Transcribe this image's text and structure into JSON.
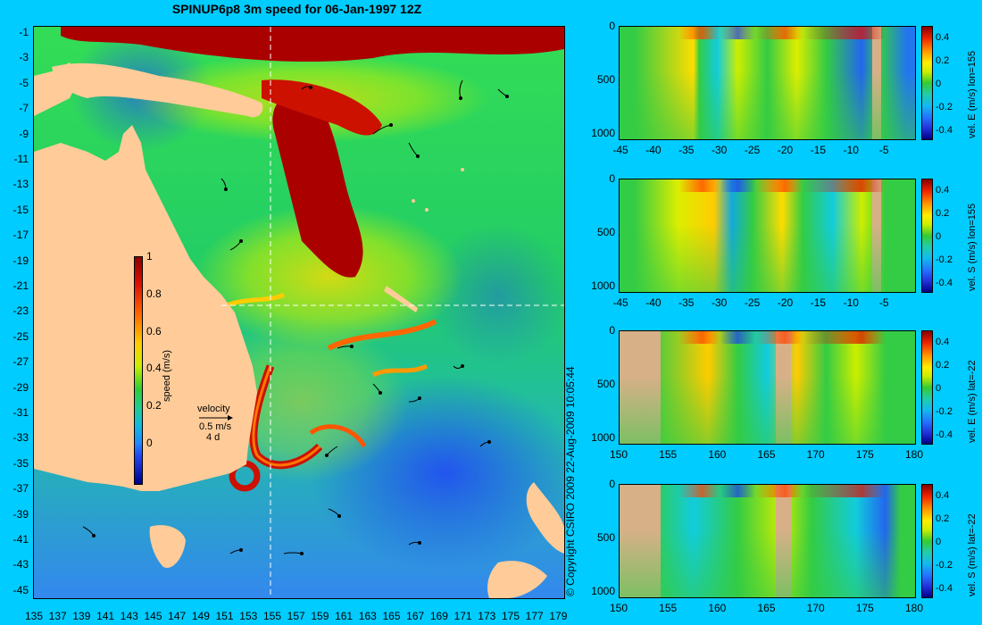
{
  "title": "SPINUP6p8 3m speed for 06-Jan-1997 12Z",
  "copyright": "© Copyright CSIRO 2009   22-Aug-2009 10:05:44",
  "map": {
    "lat_ticks": [
      "-1",
      "-3",
      "-5",
      "-7",
      "-9",
      "-11",
      "-13",
      "-15",
      "-17",
      "-19",
      "-21",
      "-23",
      "-25",
      "-27",
      "-29",
      "-31",
      "-33",
      "-35",
      "-37",
      "-39",
      "-41",
      "-43",
      "-45"
    ],
    "lon_ticks": [
      "135",
      "137",
      "139",
      "141",
      "143",
      "145",
      "147",
      "149",
      "151",
      "153",
      "155",
      "157",
      "159",
      "161",
      "163",
      "165",
      "167",
      "169",
      "171",
      "173",
      "175",
      "177",
      "179"
    ],
    "colorbar_label": "speed (m/s)",
    "colorbar_ticks": [
      "1",
      "0.8",
      "0.6",
      "0.4",
      "0.2",
      "0"
    ],
    "velocity_legend": {
      "title": "velocity",
      "speed": "0.5 m/s",
      "duration": "4 d"
    }
  },
  "panels": [
    {
      "label": "vel. E (m/s) lon=155",
      "x_ticks": [
        "-45",
        "-40",
        "-35",
        "-30",
        "-25",
        "-20",
        "-15",
        "-10",
        "-5"
      ],
      "y_ticks": [
        "0",
        "500",
        "1000"
      ],
      "cbar_ticks": [
        "0.4",
        "0.2",
        "0",
        "-0.2",
        "-0.4"
      ]
    },
    {
      "label": "vel. S (m/s) lon=155",
      "x_ticks": [
        "-45",
        "-40",
        "-35",
        "-30",
        "-25",
        "-20",
        "-15",
        "-10",
        "-5"
      ],
      "y_ticks": [
        "0",
        "500",
        "1000"
      ],
      "cbar_ticks": [
        "0.4",
        "0.2",
        "0",
        "-0.2",
        "-0.4"
      ]
    },
    {
      "label": "vel. E (m/s) lat=-22",
      "x_ticks": [
        "150",
        "155",
        "160",
        "165",
        "170",
        "175",
        "180"
      ],
      "y_ticks": [
        "0",
        "500",
        "1000"
      ],
      "cbar_ticks": [
        "0.4",
        "0.2",
        "0",
        "-0.2",
        "-0.4"
      ]
    },
    {
      "label": "vel. S (m/s) lat=-22",
      "x_ticks": [
        "150",
        "155",
        "160",
        "165",
        "170",
        "175",
        "180"
      ],
      "y_ticks": [
        "0",
        "500",
        "1000"
      ],
      "cbar_ticks": [
        "0.4",
        "0.2",
        "0",
        "-0.2",
        "-0.4"
      ]
    }
  ]
}
